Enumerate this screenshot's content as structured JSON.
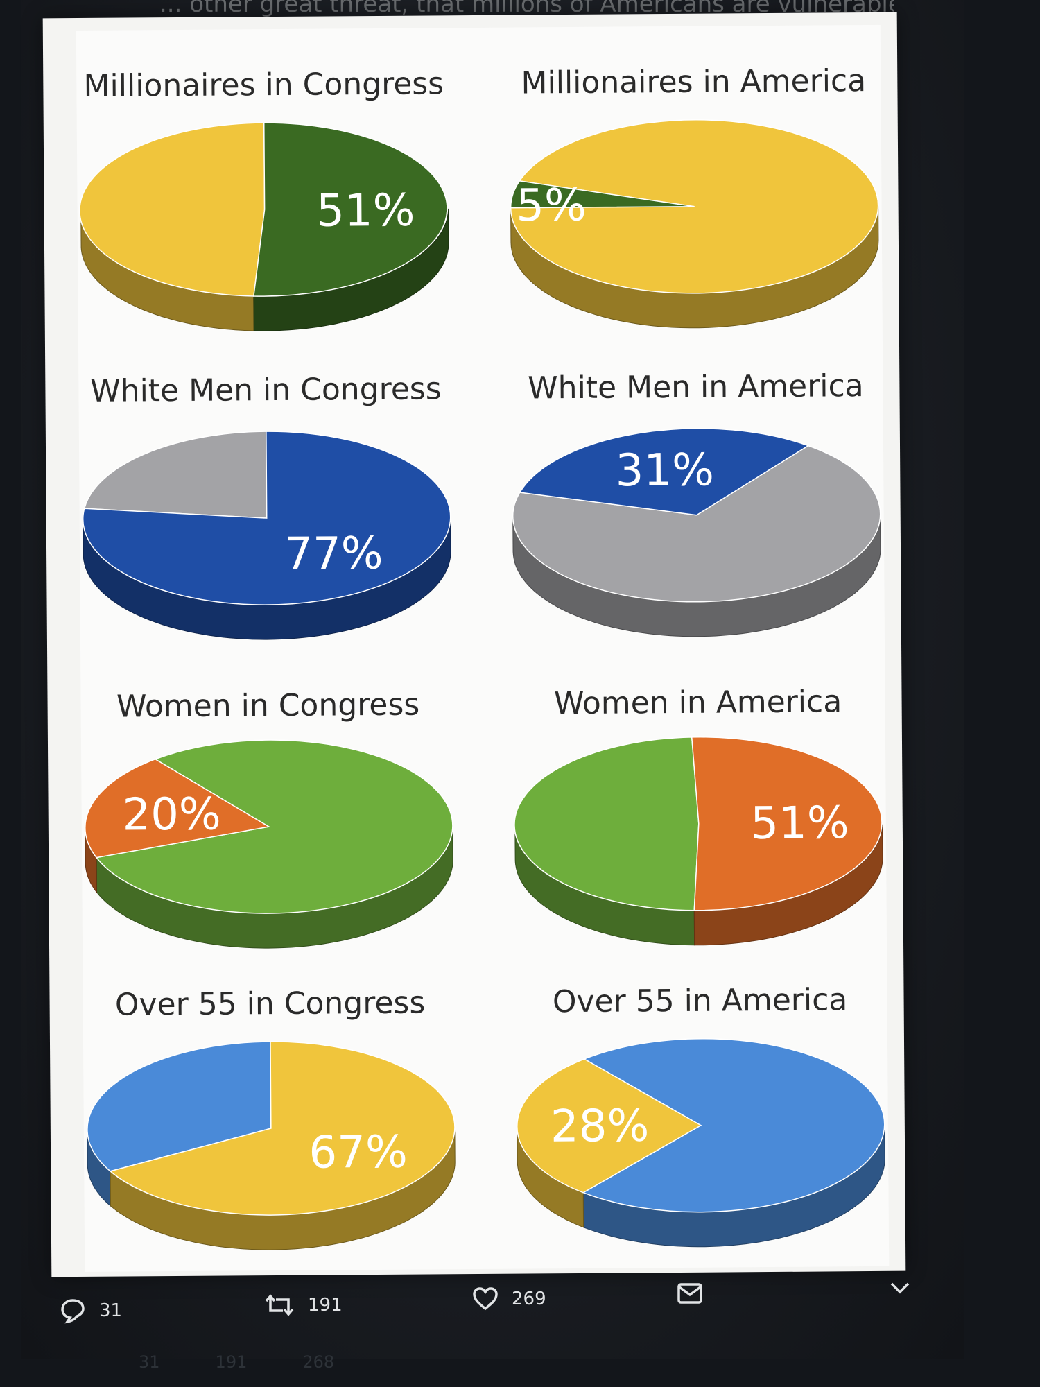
{
  "chart_data": [
    {
      "type": "pie",
      "title": "Millionaires in Congress",
      "label": "51%",
      "share": 51,
      "colors": {
        "share": "#3a6a22",
        "rest": "#f0c53c"
      }
    },
    {
      "type": "pie",
      "title": "Millionaires in America",
      "label": "5%",
      "share": 5,
      "colors": {
        "share": "#3a6a22",
        "rest": "#f0c53c"
      }
    },
    {
      "type": "pie",
      "title": "White Men in Congress",
      "label": "77%",
      "share": 77,
      "colors": {
        "share": "#1f4ea6",
        "rest": "#a3a3a6"
      }
    },
    {
      "type": "pie",
      "title": "White Men in America",
      "label": "31%",
      "share": 31,
      "colors": {
        "share": "#1f4ea6",
        "rest": "#a3a3a6"
      }
    },
    {
      "type": "pie",
      "title": "Women in Congress",
      "label": "20%",
      "share": 20,
      "colors": {
        "share": "#e06e28",
        "rest": "#6eae3c"
      }
    },
    {
      "type": "pie",
      "title": "Women in America",
      "label": "51%",
      "share": 51,
      "colors": {
        "share": "#e06e28",
        "rest": "#6eae3c"
      }
    },
    {
      "type": "pie",
      "title": "Over 55 in Congress",
      "label": "67%",
      "share": 67,
      "colors": {
        "share": "#f0c53c",
        "rest": "#4a8ad8"
      }
    },
    {
      "type": "pie",
      "title": "Over 55 in America",
      "label": "28%",
      "share": 28,
      "colors": {
        "share": "#f0c53c",
        "rest": "#4a8ad8"
      }
    }
  ],
  "tweet_actions": {
    "replies": "31",
    "retweets": "191",
    "likes": "269"
  },
  "ghost_actions": {
    "replies": "31",
    "retweets": "191",
    "likes": "268"
  },
  "top_text": "... other great threat, that millions of Americans are vulnerable."
}
